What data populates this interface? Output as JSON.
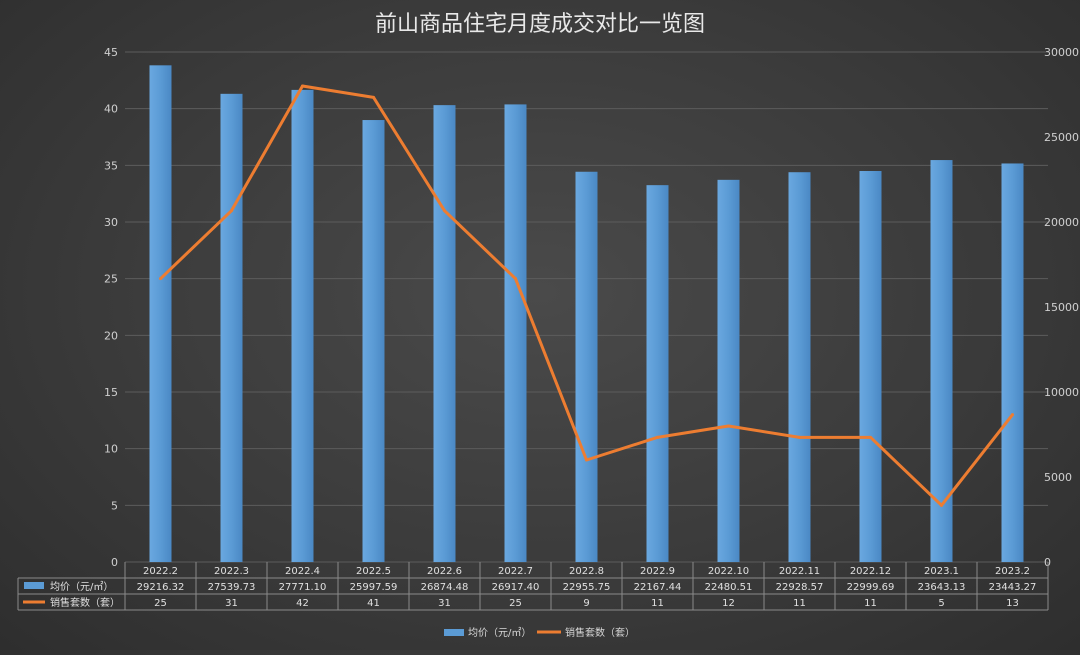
{
  "chart_data": {
    "type": "bar",
    "title": "前山商品住宅月度成交对比一览图",
    "categories": [
      "2022.2",
      "2022.3",
      "2022.4",
      "2022.5",
      "2022.6",
      "2022.7",
      "2022.8",
      "2022.9",
      "2022.10",
      "2022.11",
      "2022.12",
      "2023.1",
      "2023.2"
    ],
    "y_left": {
      "min": 0,
      "max": 45,
      "ticks": [
        "0",
        "5",
        "10",
        "15",
        "20",
        "25",
        "30",
        "35",
        "40",
        "45"
      ]
    },
    "y_right": {
      "min": 0,
      "max": 30000,
      "ticks": [
        "0",
        "5000",
        "10000",
        "15000",
        "20000",
        "25000",
        "30000"
      ]
    },
    "grid": "horizontal",
    "legend_position": "bottom",
    "series": [
      {
        "name": "均价（元/㎡）",
        "kind": "bar",
        "axis": "right",
        "color": "#5b9bd5",
        "values": [
          29216.32,
          27539.73,
          27771.1,
          25997.59,
          26874.48,
          26917.4,
          22955.75,
          22167.44,
          22480.51,
          22928.57,
          22999.69,
          23643.13,
          23443.27
        ],
        "labels": [
          "29216.32",
          "27539.73",
          "27771.10",
          "25997.59",
          "26874.48",
          "26917.40",
          "22955.75",
          "22167.44",
          "22480.51",
          "22928.57",
          "22999.69",
          "23643.13",
          "23443.27"
        ]
      },
      {
        "name": "销售套数（套）",
        "kind": "line",
        "axis": "left",
        "color": "#ed7d31",
        "values": [
          25,
          31,
          42,
          41,
          31,
          25,
          9,
          11,
          12,
          11,
          11,
          5,
          13
        ],
        "labels": [
          "25",
          "31",
          "42",
          "41",
          "31",
          "25",
          "9",
          "11",
          "12",
          "11",
          "11",
          "5",
          "13"
        ]
      }
    ]
  }
}
